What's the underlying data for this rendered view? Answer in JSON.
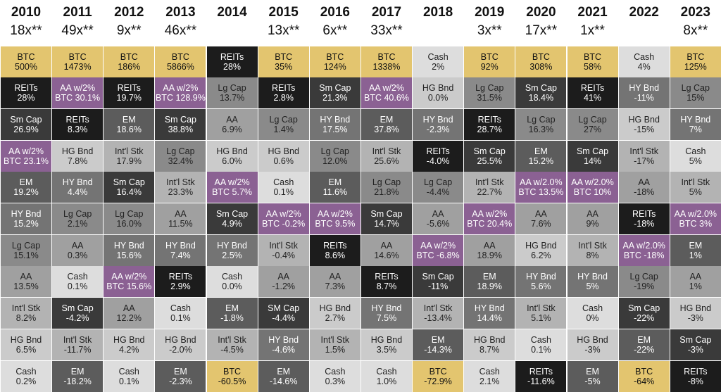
{
  "chart_data": {
    "type": "table",
    "columns": [
      {
        "year": "2010",
        "multiple": "18x**",
        "cells": [
          {
            "label": "BTC",
            "value": "500%"
          },
          {
            "label": "REITs",
            "value": "28%"
          },
          {
            "label": "Sm Cap",
            "value": "26.9%"
          },
          {
            "label": "AA w/2%",
            "value": "BTC 23.1%"
          },
          {
            "label": "EM",
            "value": "19.2%"
          },
          {
            "label": "HY Bnd",
            "value": "15.2%"
          },
          {
            "label": "Lg Cap",
            "value": "15.1%"
          },
          {
            "label": "AA",
            "value": "13.5%"
          },
          {
            "label": "Int'l Stk",
            "value": "8.2%"
          },
          {
            "label": "HG Bnd",
            "value": "6.5%"
          },
          {
            "label": "Cash",
            "value": "0.2%"
          }
        ]
      },
      {
        "year": "2011",
        "multiple": "49x**",
        "cells": [
          {
            "label": "BTC",
            "value": "1473%"
          },
          {
            "label": "AA w/2%",
            "value": "BTC 30.1%"
          },
          {
            "label": "REITs",
            "value": "8.3%"
          },
          {
            "label": "HG Bnd",
            "value": "7.8%"
          },
          {
            "label": "HY Bnd",
            "value": "4.4%"
          },
          {
            "label": "Lg Cap",
            "value": "2.1%"
          },
          {
            "label": "AA",
            "value": "0.3%"
          },
          {
            "label": "Cash",
            "value": "0.1%"
          },
          {
            "label": "Sm Cap",
            "value": "-4.2%"
          },
          {
            "label": "Int'l Stk",
            "value": "-11.7%"
          },
          {
            "label": "EM",
            "value": "-18.2%"
          }
        ]
      },
      {
        "year": "2012",
        "multiple": "9x**",
        "cells": [
          {
            "label": "BTC",
            "value": "186%"
          },
          {
            "label": "REITs",
            "value": "19.7%"
          },
          {
            "label": "EM",
            "value": "18.6%"
          },
          {
            "label": "Int'l Stk",
            "value": "17.9%"
          },
          {
            "label": "Sm Cap",
            "value": "16.4%"
          },
          {
            "label": "Lg Cap",
            "value": "16.0%"
          },
          {
            "label": "HY Bnd",
            "value": "15.6%"
          },
          {
            "label": "AA w/2%",
            "value": "BTC 15.6%"
          },
          {
            "label": "AA",
            "value": "12.2%"
          },
          {
            "label": "HG Bnd",
            "value": "4.2%"
          },
          {
            "label": "Cash",
            "value": "0.1%"
          }
        ]
      },
      {
        "year": "2013",
        "multiple": "46x**",
        "cells": [
          {
            "label": "BTC",
            "value": "5866%"
          },
          {
            "label": "AA w/2%",
            "value": "BTC 128.9%"
          },
          {
            "label": "Sm Cap",
            "value": "38.8%"
          },
          {
            "label": "Lg Cap",
            "value": "32.4%"
          },
          {
            "label": "Int'l Stk",
            "value": "23.3%"
          },
          {
            "label": "AA",
            "value": "11.5%"
          },
          {
            "label": "HY Bnd",
            "value": "7.4%"
          },
          {
            "label": "REITs",
            "value": "2.9%"
          },
          {
            "label": "Cash",
            "value": "0.1%"
          },
          {
            "label": "HG Bnd",
            "value": "-2.0%"
          },
          {
            "label": "EM",
            "value": "-2.3%"
          }
        ]
      },
      {
        "year": "2014",
        "multiple": "",
        "cells": [
          {
            "label": "REITs",
            "value": "28%"
          },
          {
            "label": "Lg Cap",
            "value": "13.7%"
          },
          {
            "label": "AA",
            "value": "6.9%"
          },
          {
            "label": "HG Bnd",
            "value": "6.0%"
          },
          {
            "label": "AA w/2%",
            "value": "BTC 5.7%"
          },
          {
            "label": "Sm Cap",
            "value": "4.9%"
          },
          {
            "label": "HY Bnd",
            "value": "2.5%"
          },
          {
            "label": "Cash",
            "value": "0.0%"
          },
          {
            "label": "EM",
            "value": "-1.8%"
          },
          {
            "label": "Int'l Stk",
            "value": "-4.5%"
          },
          {
            "label": "BTC",
            "value": "-60.5%"
          }
        ]
      },
      {
        "year": "2015",
        "multiple": "13x**",
        "cells": [
          {
            "label": "BTC",
            "value": "35%"
          },
          {
            "label": "REITs",
            "value": "2.8%"
          },
          {
            "label": "Lg Cap",
            "value": "1.4%"
          },
          {
            "label": "HG Bnd",
            "value": "0.6%"
          },
          {
            "label": "Cash",
            "value": "0.1%"
          },
          {
            "label": "AA w/2%",
            "value": "BTC -0.2%"
          },
          {
            "label": "Int'l Stk",
            "value": "-0.4%"
          },
          {
            "label": "AA",
            "value": "-1.2%"
          },
          {
            "label": "SM Cap",
            "value": "-4.4%"
          },
          {
            "label": "HY Bnd",
            "value": "-4.6%"
          },
          {
            "label": "EM",
            "value": "-14.6%"
          }
        ]
      },
      {
        "year": "2016",
        "multiple": "6x**",
        "cells": [
          {
            "label": "BTC",
            "value": "124%"
          },
          {
            "label": "Sm Cap",
            "value": "21.3%"
          },
          {
            "label": "HY Bnd",
            "value": "17.5%"
          },
          {
            "label": "Lg Cap",
            "value": "12.0%"
          },
          {
            "label": "EM",
            "value": "11.6%"
          },
          {
            "label": "AA w/2%",
            "value": "BTC 9.5%"
          },
          {
            "label": "REITs",
            "value": "8.6%"
          },
          {
            "label": "AA",
            "value": "7.3%"
          },
          {
            "label": "HG Bnd",
            "value": "2.7%"
          },
          {
            "label": "Int'l Stk",
            "value": "1.5%"
          },
          {
            "label": "Cash",
            "value": "0.3%"
          }
        ]
      },
      {
        "year": "2017",
        "multiple": "33x**",
        "cells": [
          {
            "label": "BTC",
            "value": "1338%"
          },
          {
            "label": "AA w/2%",
            "value": "BTC 40.6%"
          },
          {
            "label": "EM",
            "value": "37.8%"
          },
          {
            "label": "Int'l Stk",
            "value": "25.6%"
          },
          {
            "label": "Lg Cap",
            "value": "21.8%"
          },
          {
            "label": "Sm Cap",
            "value": "14.7%"
          },
          {
            "label": "AA",
            "value": "14.6%"
          },
          {
            "label": "REITs",
            "value": "8.7%"
          },
          {
            "label": "HY Bnd",
            "value": "7.5%"
          },
          {
            "label": "HG Bnd",
            "value": "3.5%"
          },
          {
            "label": "Cash",
            "value": "1.0%"
          }
        ]
      },
      {
        "year": "2018",
        "multiple": "",
        "cells": [
          {
            "label": "Cash",
            "value": "2%"
          },
          {
            "label": "HG Bnd",
            "value": "0.0%"
          },
          {
            "label": "HY Bnd",
            "value": "-2.3%"
          },
          {
            "label": "REITs",
            "value": "-4.0%"
          },
          {
            "label": "Lg Cap",
            "value": "-4.4%"
          },
          {
            "label": "AA",
            "value": "-5.6%"
          },
          {
            "label": "AA w/2%",
            "value": "BTC -6.8%"
          },
          {
            "label": "Sm Cap",
            "value": "-11%"
          },
          {
            "label": "Int'l Stk",
            "value": "-13.4%"
          },
          {
            "label": "EM",
            "value": "-14.3%"
          },
          {
            "label": "BTC",
            "value": "-72.9%"
          }
        ]
      },
      {
        "year": "2019",
        "multiple": "3x**",
        "cells": [
          {
            "label": "BTC",
            "value": "92%"
          },
          {
            "label": "Lg Cap",
            "value": "31.5%"
          },
          {
            "label": "REITs",
            "value": "28.7%"
          },
          {
            "label": "Sm Cap",
            "value": "25.5%"
          },
          {
            "label": "Int'l Stk",
            "value": "22.7%"
          },
          {
            "label": "AA w/2%",
            "value": "BTC 20.4%"
          },
          {
            "label": "AA",
            "value": "18.9%"
          },
          {
            "label": "EM",
            "value": "18.9%"
          },
          {
            "label": "HY Bnd",
            "value": "14.4%"
          },
          {
            "label": "HG Bnd",
            "value": "8.7%"
          },
          {
            "label": "Cash",
            "value": "2.1%"
          }
        ]
      },
      {
        "year": "2020",
        "multiple": "17x**",
        "cells": [
          {
            "label": "BTC",
            "value": "308%"
          },
          {
            "label": "Sm Cap",
            "value": "18.4%"
          },
          {
            "label": "Lg Cap",
            "value": "16.3%"
          },
          {
            "label": "EM",
            "value": "15.2%"
          },
          {
            "label": "AA w/2.0%",
            "value": "BTC 13.5%"
          },
          {
            "label": "AA",
            "value": "7.6%"
          },
          {
            "label": "HG Bnd",
            "value": "6.2%"
          },
          {
            "label": "HY Bnd",
            "value": "5.6%"
          },
          {
            "label": "Int'l Stk",
            "value": "5.1%"
          },
          {
            "label": "Cash",
            "value": "0.1%"
          },
          {
            "label": "REITs",
            "value": "-11.6%"
          }
        ]
      },
      {
        "year": "2021",
        "multiple": "1x**",
        "cells": [
          {
            "label": "BTC",
            "value": "58%"
          },
          {
            "label": "REITs",
            "value": "41%"
          },
          {
            "label": "Lg Cap",
            "value": "27%"
          },
          {
            "label": "Sm Cap",
            "value": "14%"
          },
          {
            "label": "AA w/2.0%",
            "value": "BTC 10%"
          },
          {
            "label": "AA",
            "value": "9%"
          },
          {
            "label": "Int'l Stk",
            "value": "8%"
          },
          {
            "label": "HY Bnd",
            "value": "5%"
          },
          {
            "label": "Cash",
            "value": "0%"
          },
          {
            "label": "HG Bnd",
            "value": "-3%"
          },
          {
            "label": "EM",
            "value": "-5%"
          }
        ]
      },
      {
        "year": "2022",
        "multiple": "",
        "cells": [
          {
            "label": "Cash",
            "value": "4%"
          },
          {
            "label": "HY Bnd",
            "value": "-11%"
          },
          {
            "label": "HG Bnd",
            "value": "-15%"
          },
          {
            "label": "Int'l Stk",
            "value": "-17%"
          },
          {
            "label": "AA",
            "value": "-18%"
          },
          {
            "label": "REITs",
            "value": "-18%"
          },
          {
            "label": "AA w/2.0%",
            "value": "BTC -18%"
          },
          {
            "label": "Lg Cap",
            "value": "-19%"
          },
          {
            "label": "Sm Cap",
            "value": "-22%"
          },
          {
            "label": "EM",
            "value": "-22%"
          },
          {
            "label": "BTC",
            "value": "-64%"
          }
        ]
      },
      {
        "year": "2023",
        "multiple": "8x**",
        "cells": [
          {
            "label": "BTC",
            "value": "125%"
          },
          {
            "label": "Lg Cap",
            "value": "15%"
          },
          {
            "label": "HY Bnd",
            "value": "7%"
          },
          {
            "label": "Cash",
            "value": "5%"
          },
          {
            "label": "Int'l Stk",
            "value": "5%"
          },
          {
            "label": "AA w/2.0%",
            "value": "BTC 3%"
          },
          {
            "label": "EM",
            "value": "1%"
          },
          {
            "label": "AA",
            "value": "1%"
          },
          {
            "label": "HG Bnd",
            "value": "-3%"
          },
          {
            "label": "Sm Cap",
            "value": "-3%"
          },
          {
            "label": "REITs",
            "value": "-8%"
          }
        ]
      }
    ],
    "asset_colors": {
      "BTC": {
        "bg": "#e3c56f",
        "fg": "#111111"
      },
      "AA w/2%": {
        "bg": "#8b6193",
        "fg": "#ffffff"
      },
      "AA w/2.0%": {
        "bg": "#8b6193",
        "fg": "#ffffff"
      },
      "REITs": {
        "bg": "#1c1c1c",
        "fg": "#ffffff"
      },
      "Sm Cap": {
        "bg": "#3a3a3a",
        "fg": "#ffffff"
      },
      "SM Cap": {
        "bg": "#3a3a3a",
        "fg": "#ffffff"
      },
      "EM": {
        "bg": "#5c5c5c",
        "fg": "#ffffff"
      },
      "HY Bnd": {
        "bg": "#747474",
        "fg": "#ffffff"
      },
      "Lg Cap": {
        "bg": "#8a8a8a",
        "fg": "#222222"
      },
      "AA": {
        "bg": "#a0a0a0",
        "fg": "#222222"
      },
      "Int'l Stk": {
        "bg": "#b3b3b3",
        "fg": "#222222"
      },
      "HG Bnd": {
        "bg": "#cbcbcb",
        "fg": "#222222"
      },
      "Cash": {
        "bg": "#dddddd",
        "fg": "#222222"
      }
    }
  }
}
